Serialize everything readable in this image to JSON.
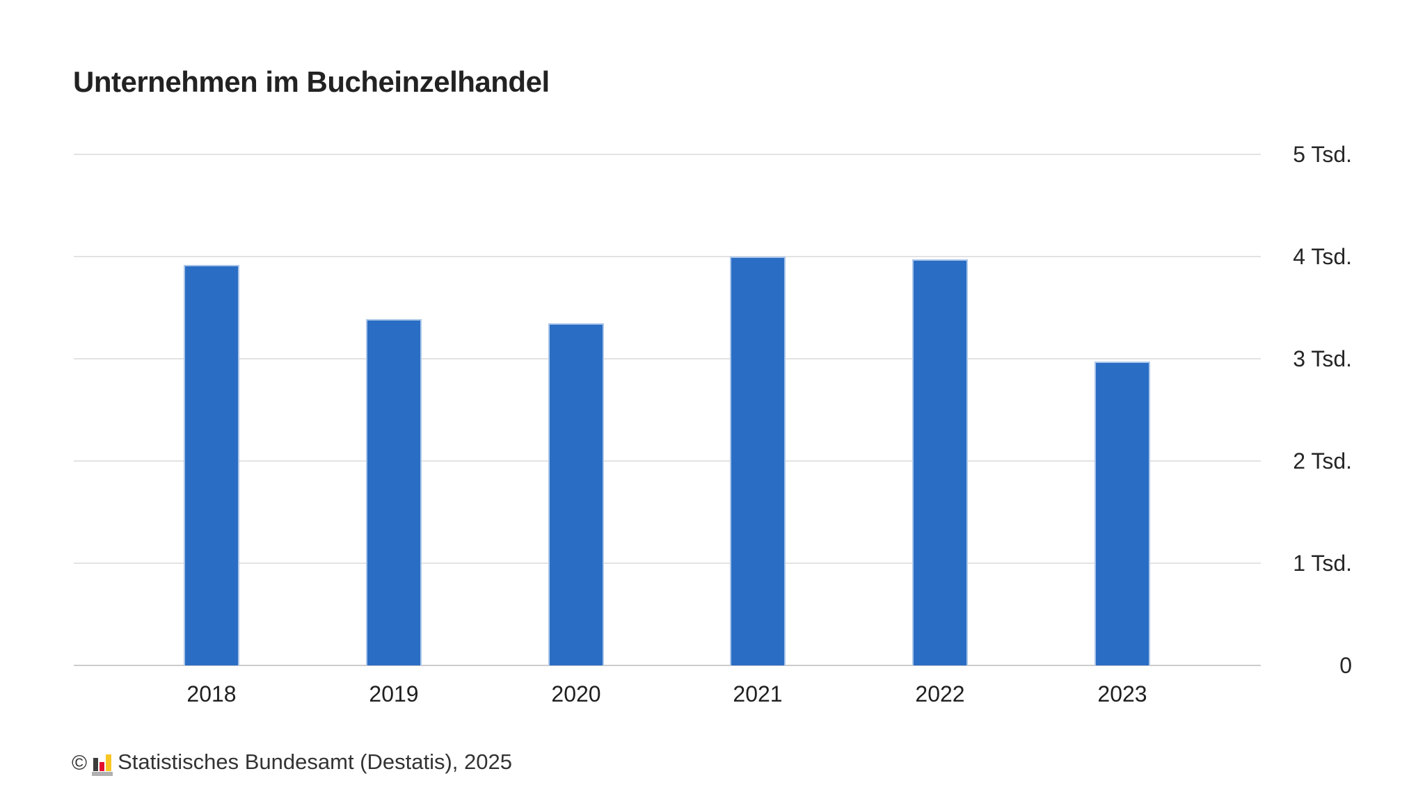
{
  "title": "Unternehmen im Bucheinzelhandel",
  "footer": {
    "copyright_symbol": "©",
    "source": "Statistisches Bundesamt (Destatis), 2025"
  },
  "colors": {
    "bar_fill": "#2a6dc4",
    "bar_edge": "#aac6e9",
    "gridline": "#e3e3e3",
    "zero_line": "#cccccc",
    "title_text": "#222222",
    "tick_text": "#262626",
    "footer_text": "#333333",
    "logo_black": "#3c3c3b",
    "logo_red": "#e40f2d",
    "logo_gold": "#f8c623",
    "logo_gray": "#b0b0b0"
  },
  "chart_data": {
    "type": "bar",
    "title": "Unternehmen im Bucheinzelhandel",
    "categories": [
      "2018",
      "2019",
      "2020",
      "2021",
      "2022",
      "2023"
    ],
    "values": [
      3920,
      3390,
      3350,
      4000,
      3970,
      2970
    ],
    "unit": "Tsd.",
    "xlabel": "",
    "ylabel": "",
    "ylim": [
      0,
      5000
    ],
    "yticks": [
      {
        "value": 5000,
        "label": "5 Tsd."
      },
      {
        "value": 4000,
        "label": "4 Tsd."
      },
      {
        "value": 3000,
        "label": "3 Tsd."
      },
      {
        "value": 2000,
        "label": "2 Tsd."
      },
      {
        "value": 1000,
        "label": "1 Tsd."
      },
      {
        "value": 0,
        "label": "0"
      }
    ],
    "grid": true,
    "legend": false,
    "bar_color": "#2a6dc4"
  }
}
